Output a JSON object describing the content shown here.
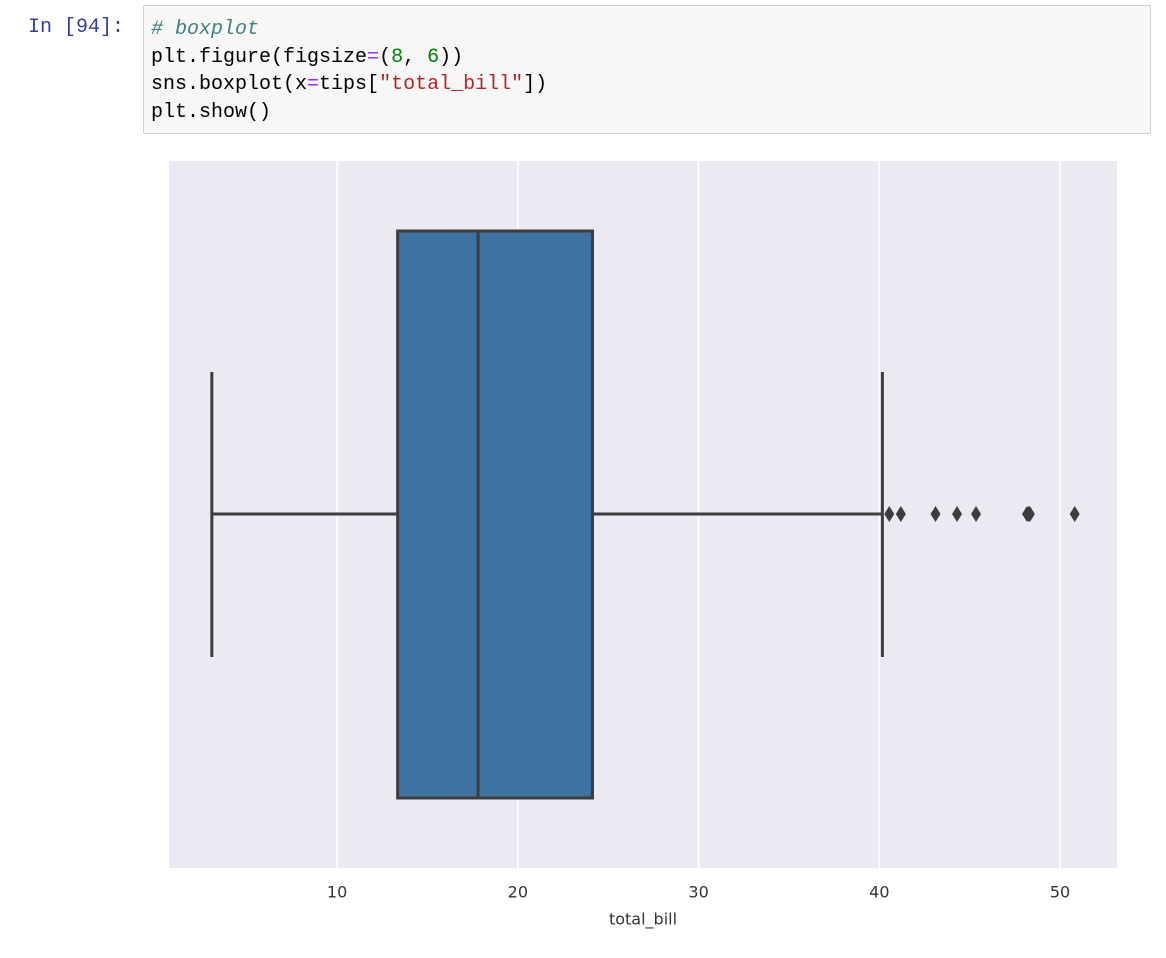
{
  "prompt": "In [94]:",
  "code": [
    [
      {
        "text": "# boxplot",
        "color": "#408080",
        "font_style": "italic"
      }
    ],
    [
      {
        "text": "plt.figure(figsize",
        "color": "#000000"
      },
      {
        "text": "=",
        "color": "#aa22ff"
      },
      {
        "text": "(",
        "color": "#000000"
      },
      {
        "text": "8",
        "color": "#008000"
      },
      {
        "text": ", ",
        "color": "#000000"
      },
      {
        "text": "6",
        "color": "#008000"
      },
      {
        "text": "))",
        "color": "#000000"
      }
    ],
    [
      {
        "text": "sns.boxplot(x",
        "color": "#000000"
      },
      {
        "text": "=",
        "color": "#aa22ff"
      },
      {
        "text": "tips[",
        "color": "#000000"
      },
      {
        "text": "\"total_bill\"",
        "color": "#ba2121"
      },
      {
        "text": "])",
        "color": "#000000"
      }
    ],
    [
      {
        "text": "plt.show()",
        "color": "#000000"
      }
    ]
  ],
  "chart_data": {
    "type": "box",
    "xlabel": "total_bill",
    "stats": {
      "whislo": 3.07,
      "q1": 13.35,
      "med": 17.8,
      "q3": 24.13,
      "whishi": 40.17
    },
    "outliers": [
      40.55,
      41.19,
      43.11,
      44.3,
      45.35,
      48.17,
      48.27,
      48.33,
      50.81
    ],
    "color": "#3f72a0",
    "edge_color": "#3d3d3d",
    "background": "#eaeaf2",
    "xlim": [
      0.7,
      53.15
    ],
    "xticks": [
      10,
      20,
      30,
      40,
      50
    ],
    "grid": true
  }
}
